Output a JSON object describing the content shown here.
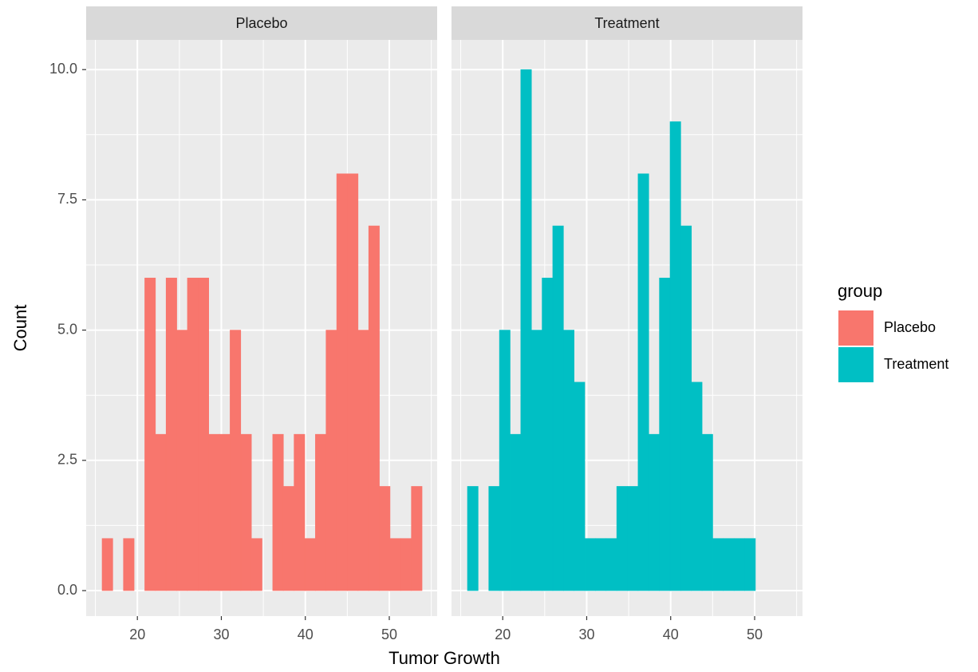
{
  "chart_data": {
    "type": "histogram",
    "xlabel": "Tumor Growth",
    "ylabel": "Count",
    "legend_title": "group",
    "legend_position": "right",
    "grid": true,
    "bins": [
      15.8,
      17.07,
      18.34,
      19.61,
      20.88,
      22.15,
      23.42,
      24.69,
      25.96,
      27.23,
      28.5,
      29.77,
      31.04,
      32.31,
      33.58,
      34.85,
      36.12,
      37.39,
      38.66,
      39.93,
      41.2,
      42.47,
      43.74,
      45.01,
      46.28,
      47.55,
      48.82,
      50.09,
      51.36,
      52.63,
      53.9
    ],
    "series": [
      {
        "name": "Placebo",
        "color": "#F8766D",
        "values": [
          1,
          0,
          1,
          0,
          6,
          3,
          6,
          5,
          6,
          6,
          3,
          3,
          5,
          3,
          1,
          0,
          3,
          2,
          3,
          1,
          3,
          5,
          8,
          8,
          5,
          7,
          2,
          1,
          1,
          2
        ]
      },
      {
        "name": "Treatment",
        "color": "#00BFC4",
        "values": [
          2,
          0,
          2,
          5,
          3,
          10,
          5,
          6,
          7,
          5,
          4,
          1,
          1,
          1,
          2,
          2,
          8,
          3,
          6,
          9,
          7,
          4,
          3,
          1,
          1,
          1,
          1,
          0,
          0,
          0
        ]
      }
    ],
    "xlim": [
      13.9,
      55.7
    ],
    "xticks": [
      20,
      30,
      40,
      50
    ],
    "ylim": [
      -0.49,
      10.57
    ],
    "yticks": [
      {
        "value": 0,
        "label": "0.0"
      },
      2.5,
      {
        "value": 5,
        "label": "5.0"
      },
      7.5,
      {
        "value": 10,
        "label": "10.0"
      }
    ]
  }
}
